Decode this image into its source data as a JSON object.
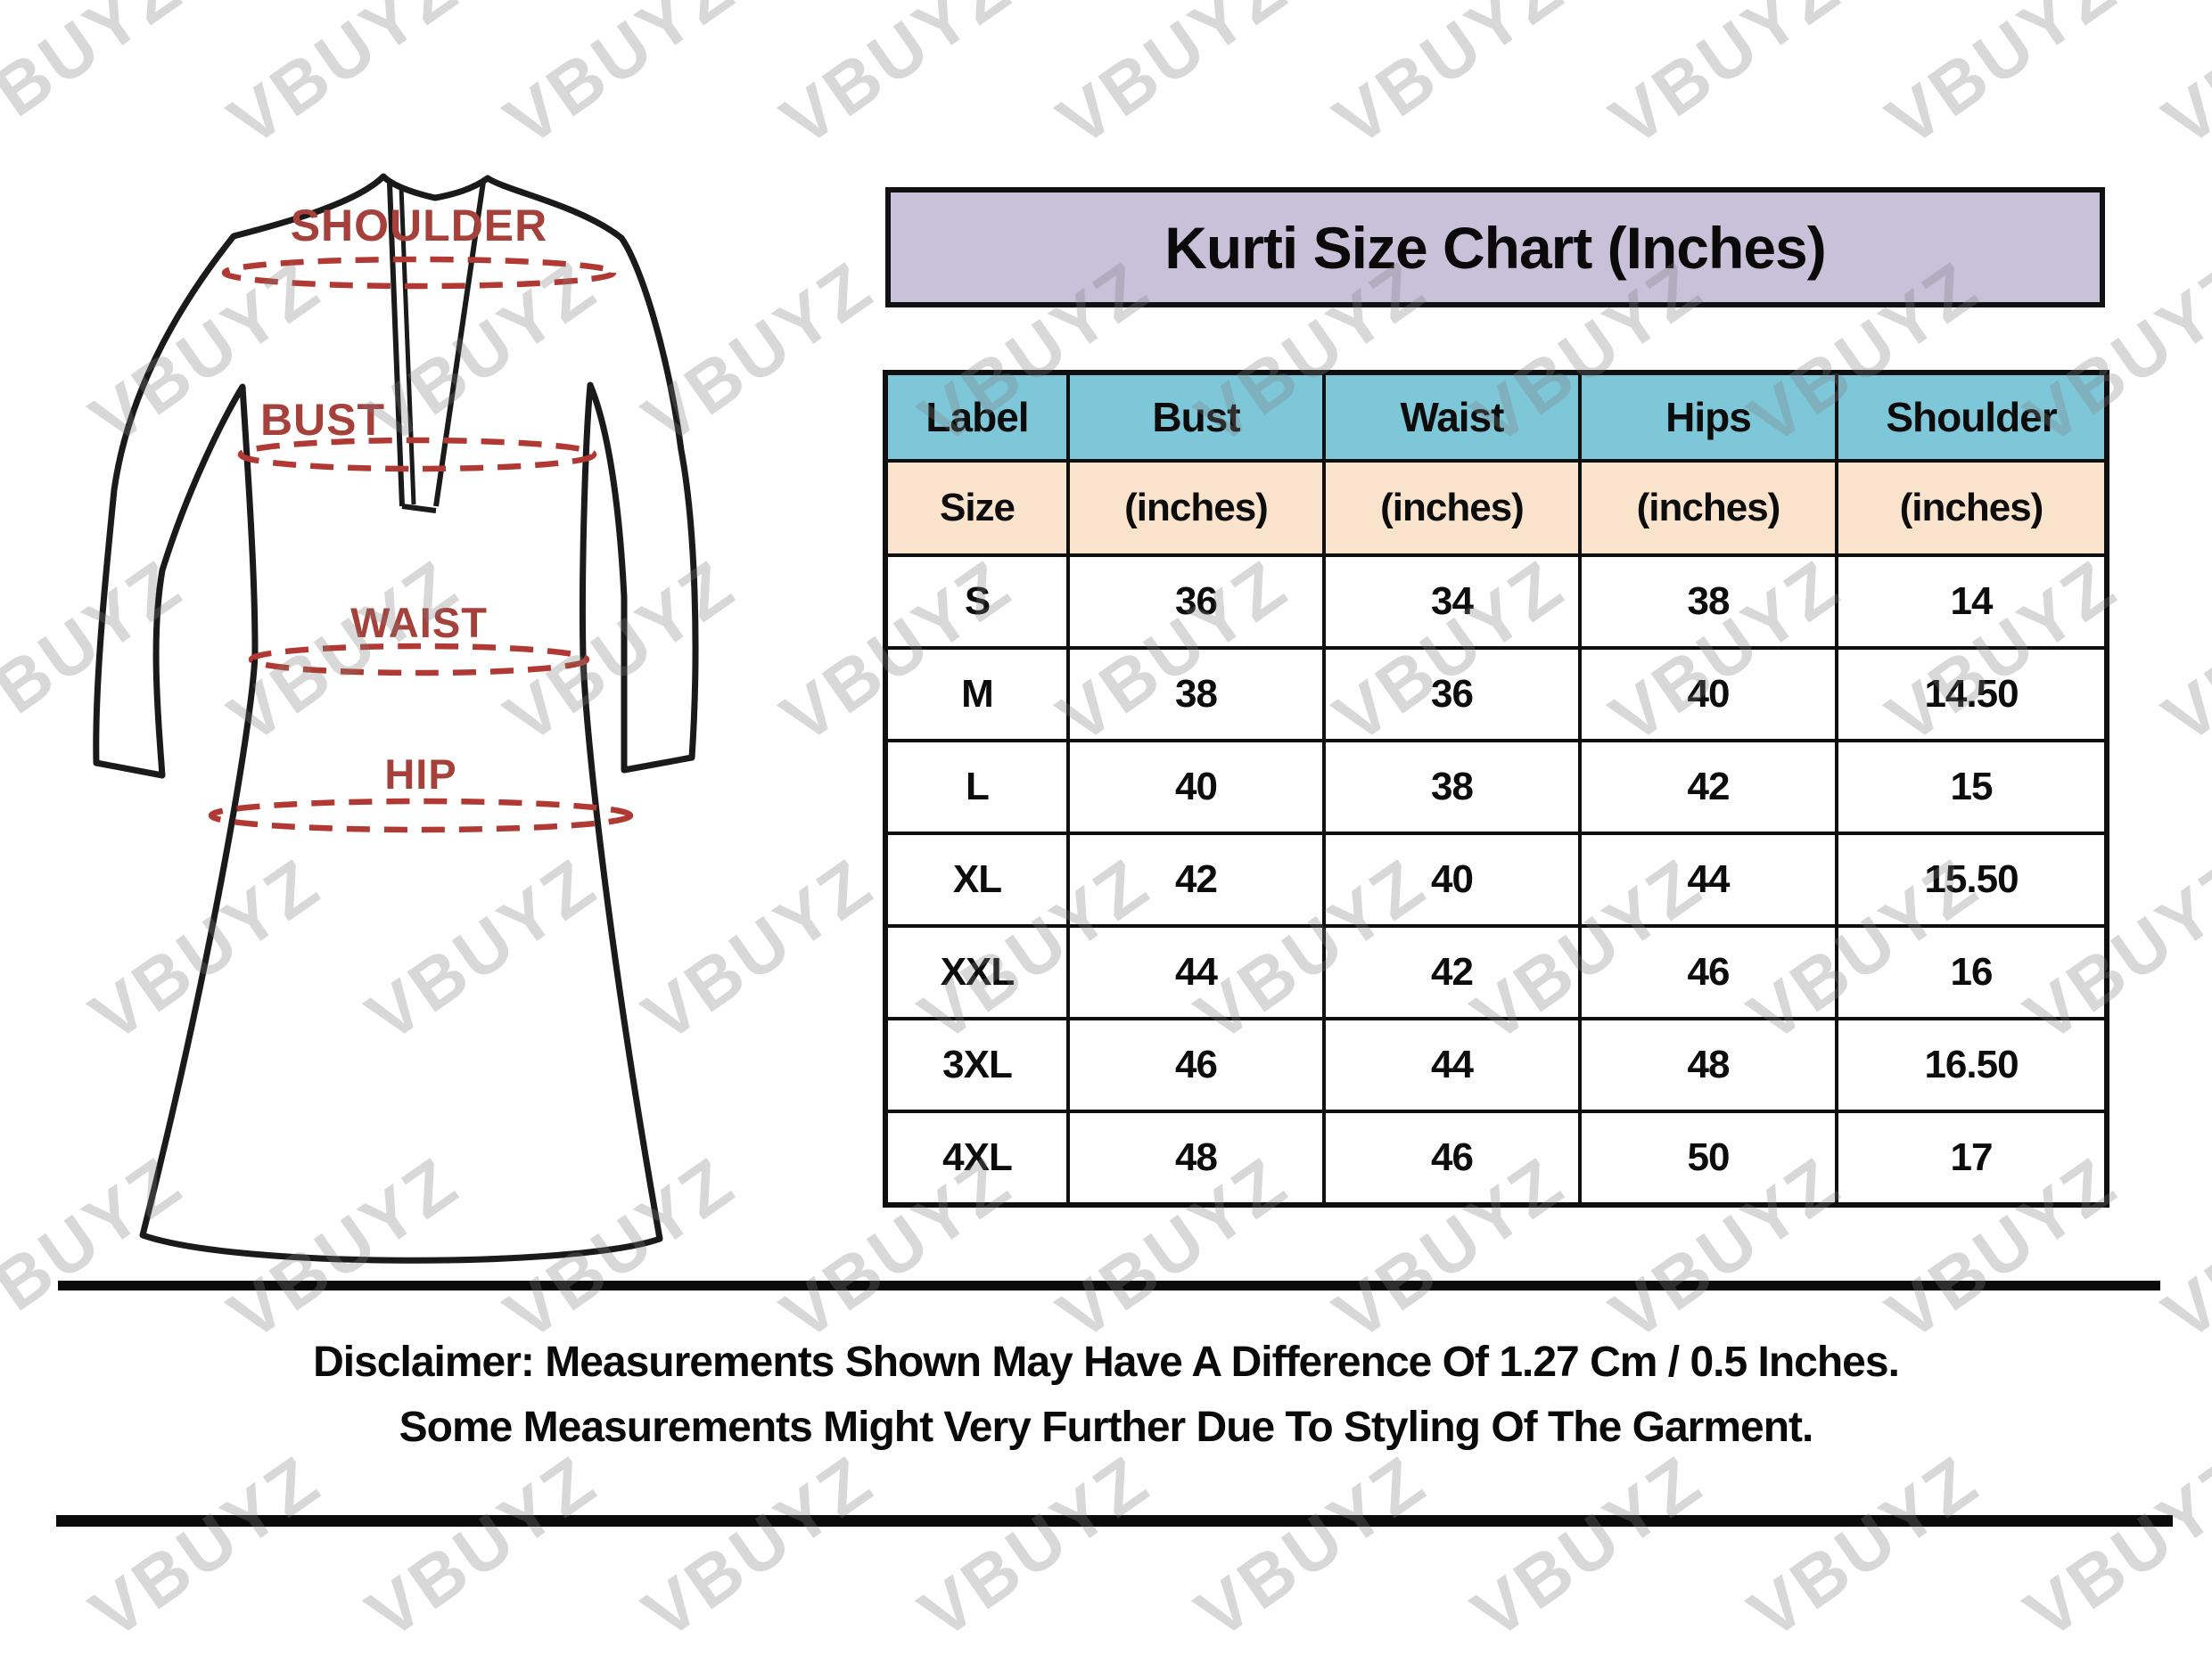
{
  "watermark": {
    "text": "VBUYZ"
  },
  "diagram": {
    "labels": {
      "shoulder": "SHOULDER",
      "bust": "BUST",
      "waist": "WAIST",
      "hip": "HIP"
    },
    "label_color": "#a5403b",
    "dash_color": "#b03a33",
    "outline_color": "#1a1a1a"
  },
  "title": {
    "text": "Kurti Size Chart (Inches)",
    "bg_color": "#c9c0da"
  },
  "table": {
    "header": {
      "bg_color": "#7ec7d9",
      "labels": [
        "Label",
        "Bust",
        "Waist",
        "Hips",
        "Shoulder"
      ]
    },
    "subheader": {
      "bg_color": "#fae3cd",
      "labels": [
        "Size",
        "(inches)",
        "(inches)",
        "(inches)",
        "(inches)"
      ]
    },
    "rows": [
      [
        "S",
        "36",
        "34",
        "38",
        "14"
      ],
      [
        "M",
        "38",
        "36",
        "40",
        "14.50"
      ],
      [
        "L",
        "40",
        "38",
        "42",
        "15"
      ],
      [
        "XL",
        "42",
        "40",
        "44",
        "15.50"
      ],
      [
        "XXL",
        "44",
        "42",
        "46",
        "16"
      ],
      [
        "3XL",
        "46",
        "44",
        "48",
        "16.50"
      ],
      [
        "4XL",
        "48",
        "46",
        "50",
        "17"
      ]
    ]
  },
  "disclaimer": {
    "line1": "Disclaimer: Measurements Shown May Have A Difference Of 1.27 Cm / 0.5 Inches.",
    "line2": "Some Measurements Might Very Further Due To Styling Of The Garment."
  }
}
